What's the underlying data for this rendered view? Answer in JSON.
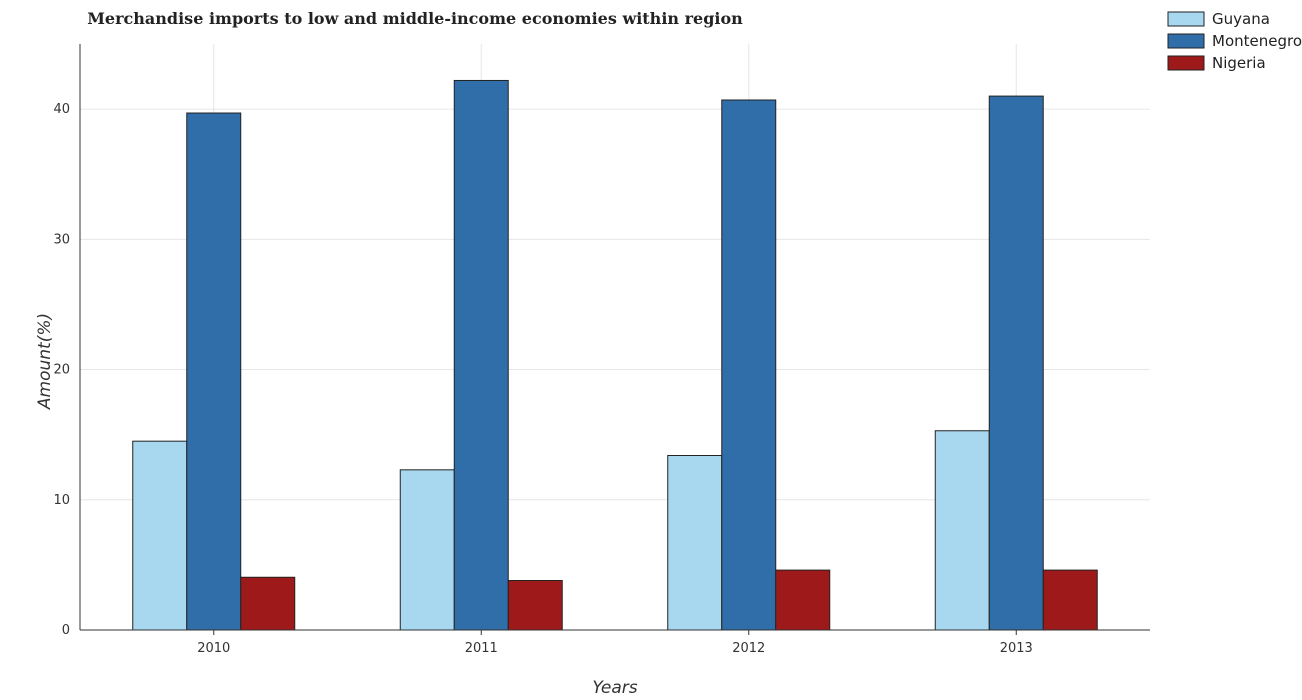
{
  "chart_data": {
    "type": "bar",
    "title": "Merchandise imports to low and middle-income economies within region",
    "xlabel": "Years",
    "ylabel": "Amount(%)",
    "categories": [
      "2010",
      "2011",
      "2012",
      "2013"
    ],
    "series": [
      {
        "name": "Guyana",
        "color": "#a7d8f0",
        "values": [
          14.5,
          12.3,
          13.4,
          15.3
        ]
      },
      {
        "name": "Montenegro",
        "color": "#2f6ea8",
        "values": [
          39.7,
          42.2,
          40.7,
          41.0
        ]
      },
      {
        "name": "Nigeria",
        "color": "#9e1a1a",
        "values": [
          4.05,
          3.8,
          4.6,
          4.6
        ]
      }
    ],
    "ylim": [
      0,
      45
    ],
    "yticks": [
      0,
      10,
      20,
      30,
      40
    ],
    "grid": true,
    "legend_position": "top-right"
  }
}
